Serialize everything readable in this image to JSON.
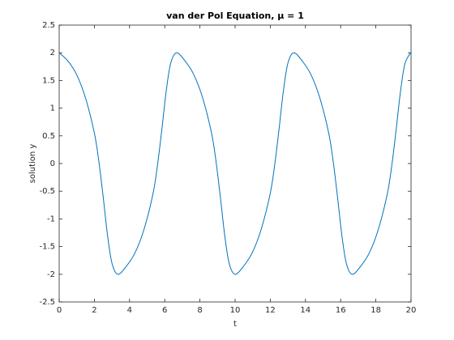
{
  "chart_data": {
    "type": "line",
    "title": "van der Pol Equation, μ = 1",
    "x_label": "t",
    "y_label": "solution y",
    "series": [
      {
        "color": "#0072bd",
        "x": [
          0,
          0.5,
          1,
          1.5,
          2,
          2.25,
          2.5,
          2.75,
          3,
          3.33,
          3.83,
          4.33,
          4.83,
          5.33,
          5.58,
          5.83,
          6.08,
          6.33,
          6.66,
          7.16,
          7.66,
          8.16,
          8.66,
          8.91,
          9.16,
          9.41,
          9.66,
          9.99,
          10.49,
          10.99,
          11.49,
          11.99,
          12.24,
          12.49,
          12.74,
          12.99,
          13.32,
          13.82,
          14.32,
          14.82,
          15.32,
          15.57,
          15.82,
          16.07,
          16.32,
          16.65,
          17.15,
          17.65,
          18.15,
          18.65,
          18.9,
          19.15,
          19.4,
          19.65,
          19.98,
          20
        ],
        "values": [
          2,
          1.85,
          1.6,
          1.18,
          0.55,
          0.05,
          -0.6,
          -1.3,
          -1.8,
          -2,
          -1.85,
          -1.6,
          -1.18,
          -0.55,
          -0.05,
          0.6,
          1.3,
          1.8,
          2,
          1.85,
          1.6,
          1.18,
          0.55,
          0.05,
          -0.6,
          -1.3,
          -1.8,
          -2,
          -1.85,
          -1.6,
          -1.18,
          -0.55,
          -0.05,
          0.6,
          1.3,
          1.8,
          2,
          1.85,
          1.6,
          1.18,
          0.55,
          0.05,
          -0.6,
          -1.3,
          -1.8,
          -2,
          -1.85,
          -1.6,
          -1.18,
          -0.55,
          -0.05,
          0.6,
          1.3,
          1.8,
          2,
          2
        ]
      }
    ],
    "xlim": [
      0,
      20
    ],
    "xticks": [
      0,
      2,
      4,
      6,
      8,
      10,
      12,
      14,
      16,
      18,
      20
    ],
    "ylim": [
      -2.5,
      2.5
    ],
    "yticks": [
      -2.5,
      -2,
      -1.5,
      -1,
      -0.5,
      0,
      0.5,
      1,
      1.5,
      2,
      2.5
    ],
    "grid": false
  }
}
